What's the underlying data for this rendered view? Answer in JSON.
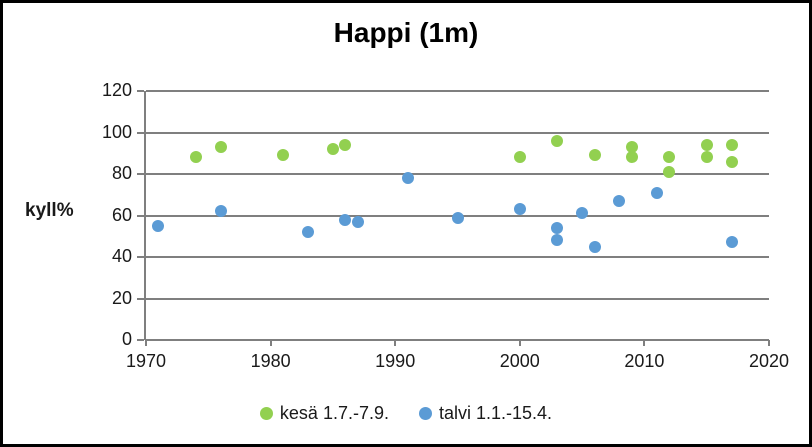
{
  "chart_data": {
    "type": "scatter",
    "title": "Happi (1m)",
    "xlabel": "",
    "ylabel": "kyll%",
    "xlim": [
      1970,
      2020
    ],
    "ylim": [
      0,
      120
    ],
    "x_ticks": [
      1970,
      1980,
      1990,
      2000,
      2010,
      2020
    ],
    "y_ticks": [
      0,
      20,
      40,
      60,
      80,
      100,
      120
    ],
    "grid": "horizontal",
    "grid_color": "#7f7f7f",
    "axis_color": "#7f7f7f",
    "text_color": "#1a1a1a",
    "background_color": "#ffffff",
    "border_color": "#000000",
    "legend_position": "bottom-center",
    "series": [
      {
        "name": "kesä 1.7.-7.9.",
        "color": "#92D050",
        "marker": "circle",
        "points": [
          {
            "x": 1974,
            "y": 88
          },
          {
            "x": 1976,
            "y": 93
          },
          {
            "x": 1981,
            "y": 89
          },
          {
            "x": 1985,
            "y": 92
          },
          {
            "x": 1986,
            "y": 94
          },
          {
            "x": 2000,
            "y": 88
          },
          {
            "x": 2003,
            "y": 96
          },
          {
            "x": 2006,
            "y": 89
          },
          {
            "x": 2009,
            "y": 93
          },
          {
            "x": 2009,
            "y": 88
          },
          {
            "x": 2012,
            "y": 88
          },
          {
            "x": 2012,
            "y": 81
          },
          {
            "x": 2015,
            "y": 94
          },
          {
            "x": 2015,
            "y": 88
          },
          {
            "x": 2017,
            "y": 94
          },
          {
            "x": 2017,
            "y": 86
          }
        ]
      },
      {
        "name": "talvi 1.1.-15.4.",
        "color": "#5B9BD5",
        "marker": "circle",
        "points": [
          {
            "x": 1971,
            "y": 55
          },
          {
            "x": 1976,
            "y": 62
          },
          {
            "x": 1983,
            "y": 52
          },
          {
            "x": 1986,
            "y": 58
          },
          {
            "x": 1987,
            "y": 57
          },
          {
            "x": 1991,
            "y": 78
          },
          {
            "x": 1995,
            "y": 59
          },
          {
            "x": 2000,
            "y": 63
          },
          {
            "x": 2003,
            "y": 54
          },
          {
            "x": 2003,
            "y": 48
          },
          {
            "x": 2005,
            "y": 61
          },
          {
            "x": 2006,
            "y": 45
          },
          {
            "x": 2008,
            "y": 67
          },
          {
            "x": 2011,
            "y": 71
          },
          {
            "x": 2017,
            "y": 47
          }
        ]
      }
    ]
  }
}
